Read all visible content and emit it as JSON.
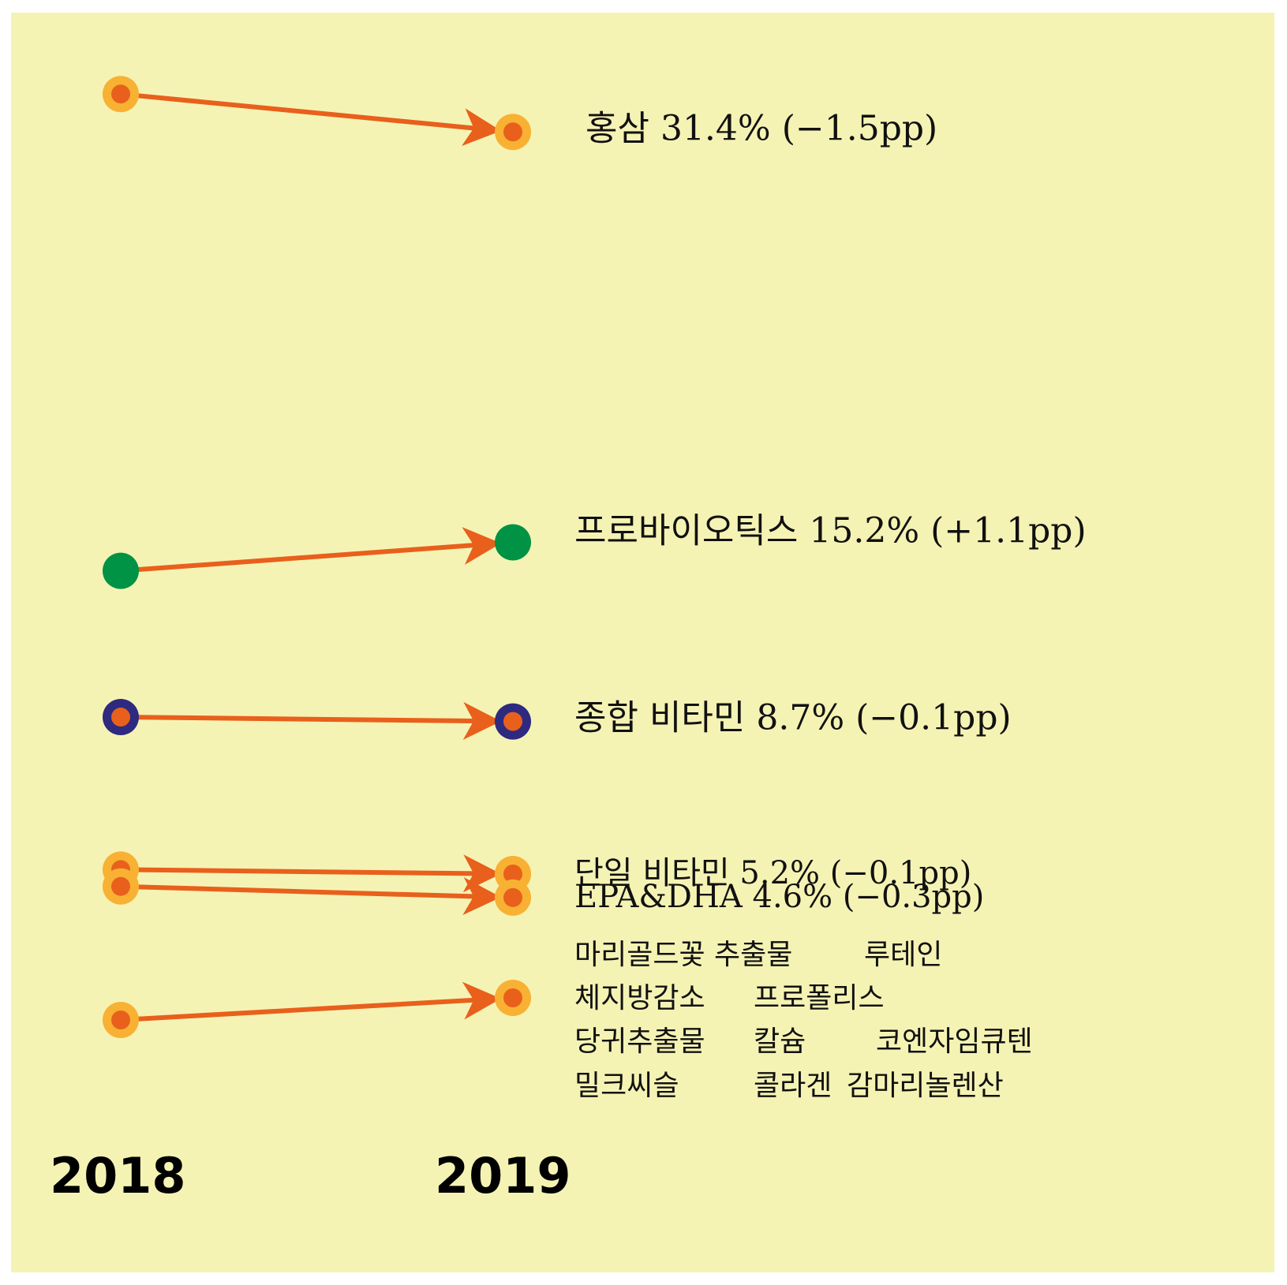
{
  "chart_data": {
    "type": "slope",
    "title": "",
    "xlabel": "",
    "ylabel": "",
    "x": [
      "2018",
      "2019"
    ],
    "colors": {
      "arrow": "#e8601c",
      "dot_center": "#e8601c",
      "ring_orange": "#f8b133",
      "ring_navy": "#2e2a7f",
      "green": "#009245"
    },
    "series": [
      {
        "name": "홍삼",
        "values": [
          32.9,
          31.4
        ],
        "label": "홍삼 31.4% (−1.5pp)",
        "style": "orange-ring"
      },
      {
        "name": "프로바이오틱스",
        "values": [
          14.1,
          15.2
        ],
        "label": "프로바이오틱스 15.2% (+1.1pp)",
        "style": "green"
      },
      {
        "name": "종합 비타민",
        "values": [
          8.8,
          8.7
        ],
        "label": "종합 비타민 8.7% (−0.1pp)",
        "style": "navy-ring"
      },
      {
        "name": "단일 비타민",
        "values": [
          5.3,
          5.2
        ],
        "label": "단일 비타민 5.2% (−0.1pp)",
        "style": "orange-ring"
      },
      {
        "name": "EPA&DHA",
        "values": [
          4.9,
          4.6
        ],
        "label": "EPA&DHA 4.6% (−0.3pp)",
        "style": "orange-ring"
      },
      {
        "name": "",
        "values": [
          1.3,
          1.9
        ],
        "style": "orange-ring",
        "label_lines": [
          [
            "마리골드꽃 추출물",
            "루테인"
          ],
          [
            "체지방감소",
            "프로폴리스"
          ],
          [
            "당귀추출물",
            "칼슘",
            "코엔자임큐텐"
          ],
          [
            "밀크씨슬",
            "콜라겐",
            "감마리놀렌산"
          ]
        ]
      }
    ]
  }
}
